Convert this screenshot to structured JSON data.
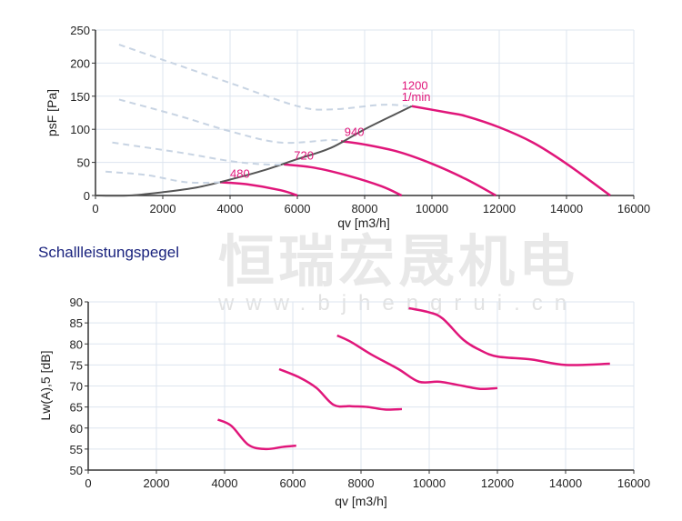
{
  "watermark": {
    "cn": "恒瑞宏晟机电",
    "url": "www.bjhengrui.cn"
  },
  "section_title": "Schallleistungspegel",
  "colors": {
    "curve": "#e0167a",
    "system": "#555555",
    "dashed": "#c8d4e3",
    "grid": "#dde5ef"
  },
  "chart_data": [
    {
      "type": "line",
      "xlabel": "qv [m3/h]",
      "ylabel": "psF [Pa]",
      "xlim": [
        0,
        16000
      ],
      "ylim": [
        0,
        250
      ],
      "xticks": [
        0,
        2000,
        4000,
        6000,
        8000,
        10000,
        12000,
        14000,
        16000
      ],
      "yticks": [
        0,
        50,
        100,
        150,
        200,
        250
      ],
      "grid": true,
      "annotations": [
        {
          "text": "480",
          "x": 4000,
          "y": 27
        },
        {
          "text": "720",
          "x": 5900,
          "y": 54
        },
        {
          "text": "940",
          "x": 7400,
          "y": 90
        },
        {
          "text": "1200",
          "x": 9100,
          "y": 160
        },
        {
          "text": "1/min",
          "x": 9100,
          "y": 143
        }
      ],
      "series": [
        {
          "name": "480",
          "style": "curve",
          "points": [
            [
              3700,
              20
            ],
            [
              4500,
              17
            ],
            [
              5500,
              8
            ],
            [
              6000,
              0
            ]
          ]
        },
        {
          "name": "720",
          "style": "curve",
          "points": [
            [
              5600,
              47
            ],
            [
              6500,
              42
            ],
            [
              7500,
              30
            ],
            [
              8500,
              14
            ],
            [
              9100,
              0
            ]
          ]
        },
        {
          "name": "940",
          "style": "curve",
          "points": [
            [
              7300,
              82
            ],
            [
              8000,
              77
            ],
            [
              9000,
              66
            ],
            [
              10000,
              48
            ],
            [
              11000,
              25
            ],
            [
              11900,
              0
            ]
          ]
        },
        {
          "name": "1200",
          "style": "curve",
          "points": [
            [
              9400,
              135
            ],
            [
              10500,
              125
            ],
            [
              11000,
              120
            ],
            [
              12000,
              103
            ],
            [
              13000,
              80
            ],
            [
              14000,
              48
            ],
            [
              15300,
              0
            ]
          ]
        },
        {
          "style": "system",
          "points": [
            [
              0,
              0
            ],
            [
              1000,
              0
            ],
            [
              2000,
              5
            ],
            [
              3000,
              12
            ],
            [
              4000,
              24
            ],
            [
              5000,
              38
            ],
            [
              6000,
              55
            ],
            [
              7000,
              72
            ],
            [
              8000,
              100
            ],
            [
              9000,
              125
            ],
            [
              9400,
              135
            ]
          ]
        },
        {
          "style": "dashed",
          "points": [
            [
              700,
              228
            ],
            [
              2000,
              205
            ],
            [
              4000,
              170
            ],
            [
              6000,
              135
            ],
            [
              7000,
              130
            ],
            [
              8500,
              137
            ],
            [
              9300,
              135
            ]
          ]
        },
        {
          "style": "dashed",
          "points": [
            [
              700,
              145
            ],
            [
              2500,
              120
            ],
            [
              4000,
              97
            ],
            [
              5500,
              80
            ],
            [
              7000,
              84
            ],
            [
              7300,
              82
            ]
          ]
        },
        {
          "style": "dashed",
          "points": [
            [
              500,
              80
            ],
            [
              2500,
              65
            ],
            [
              4000,
              52
            ],
            [
              5000,
              47
            ],
            [
              5600,
              47
            ]
          ]
        },
        {
          "style": "dashed",
          "points": [
            [
              300,
              36
            ],
            [
              1500,
              31
            ],
            [
              2700,
              20
            ],
            [
              3700,
              20
            ]
          ]
        }
      ]
    },
    {
      "type": "line",
      "xlabel": "qv [m3/h]",
      "ylabel": "Lw(A),5 [dB]",
      "xlim": [
        0,
        16000
      ],
      "ylim": [
        50,
        90
      ],
      "xticks": [
        0,
        2000,
        4000,
        6000,
        8000,
        10000,
        12000,
        14000,
        16000
      ],
      "yticks": [
        50,
        55,
        60,
        65,
        70,
        75,
        80,
        85,
        90
      ],
      "grid": true,
      "series": [
        {
          "style": "curve",
          "points": [
            [
              3800,
              62
            ],
            [
              4200,
              60.5
            ],
            [
              4700,
              56
            ],
            [
              5200,
              55
            ],
            [
              5700,
              55.5
            ],
            [
              6100,
              55.8
            ]
          ]
        },
        {
          "style": "curve",
          "points": [
            [
              5600,
              74
            ],
            [
              6200,
              72
            ],
            [
              6700,
              69.5
            ],
            [
              7200,
              65.5
            ],
            [
              7700,
              65.2
            ],
            [
              8200,
              65
            ],
            [
              8700,
              64.4
            ],
            [
              9200,
              64.5
            ]
          ]
        },
        {
          "style": "curve",
          "points": [
            [
              7300,
              82
            ],
            [
              7700,
              80.5
            ],
            [
              8300,
              77.5
            ],
            [
              9100,
              74
            ],
            [
              9700,
              71
            ],
            [
              10300,
              71
            ],
            [
              11000,
              70
            ],
            [
              11500,
              69.3
            ],
            [
              12000,
              69.5
            ]
          ]
        },
        {
          "style": "curve",
          "points": [
            [
              9400,
              88.5
            ],
            [
              10000,
              87.5
            ],
            [
              10400,
              86
            ],
            [
              11000,
              81
            ],
            [
              11500,
              78.5
            ],
            [
              12000,
              77
            ],
            [
              13000,
              76.3
            ],
            [
              14000,
              75
            ],
            [
              15300,
              75.3
            ]
          ]
        }
      ]
    }
  ]
}
